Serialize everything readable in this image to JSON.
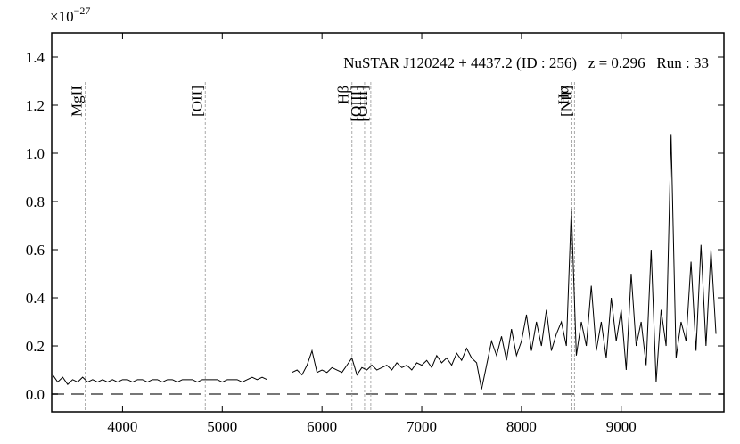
{
  "chart_data": {
    "type": "line",
    "offset_label": "×10",
    "offset_exponent": "−27",
    "annotation": "NuSTAR J120242 + 4437.2 (ID : 256)   z = 0.296   Run : 33",
    "x": [
      3300,
      3350,
      3400,
      3450,
      3500,
      3550,
      3600,
      3650,
      3700,
      3750,
      3800,
      3850,
      3900,
      3950,
      4000,
      4050,
      4100,
      4150,
      4200,
      4250,
      4300,
      4350,
      4400,
      4450,
      4500,
      4550,
      4600,
      4650,
      4700,
      4750,
      4800,
      4850,
      4900,
      4950,
      5000,
      5050,
      5100,
      5150,
      5200,
      5250,
      5300,
      5350,
      5400,
      5450,
      5500,
      5550,
      5600,
      5650,
      5700,
      5750,
      5800,
      5850,
      5900,
      5950,
      6000,
      6050,
      6100,
      6150,
      6200,
      6250,
      6300,
      6350,
      6400,
      6450,
      6500,
      6550,
      6600,
      6650,
      6700,
      6750,
      6800,
      6850,
      6900,
      6950,
      7000,
      7050,
      7100,
      7150,
      7200,
      7250,
      7300,
      7350,
      7400,
      7450,
      7500,
      7550,
      7600,
      7650,
      7700,
      7750,
      7800,
      7850,
      7900,
      7950,
      8000,
      8050,
      8100,
      8150,
      8200,
      8250,
      8300,
      8350,
      8400,
      8450,
      8500,
      8550,
      8600,
      8650,
      8700,
      8750,
      8800,
      8850,
      8900,
      8950,
      9000,
      9050,
      9100,
      9150,
      9200,
      9250,
      9300,
      9350,
      9400,
      9450,
      9500,
      9550,
      9600,
      9650,
      9700,
      9750,
      9800,
      9850,
      9900,
      9950
    ],
    "series": [
      {
        "color": "#000000",
        "values": [
          0.08,
          0.05,
          0.07,
          0.04,
          0.06,
          0.05,
          0.07,
          0.05,
          0.06,
          0.05,
          0.06,
          0.05,
          0.06,
          0.05,
          0.06,
          0.06,
          0.05,
          0.06,
          0.06,
          0.05,
          0.06,
          0.06,
          0.05,
          0.06,
          0.06,
          0.05,
          0.06,
          0.06,
          0.06,
          0.05,
          0.06,
          0.06,
          0.06,
          0.06,
          0.05,
          0.06,
          0.06,
          0.06,
          0.05,
          0.06,
          0.07,
          0.06,
          0.07,
          0.06,
          null,
          null,
          null,
          null,
          0.09,
          0.1,
          0.08,
          0.12,
          0.18,
          0.09,
          0.1,
          0.09,
          0.11,
          0.1,
          0.09,
          0.12,
          0.15,
          0.08,
          0.11,
          0.1,
          0.12,
          0.1,
          0.11,
          0.12,
          0.1,
          0.13,
          0.11,
          0.12,
          0.1,
          0.13,
          0.12,
          0.14,
          0.11,
          0.16,
          0.13,
          0.15,
          0.12,
          0.17,
          0.14,
          0.19,
          0.15,
          0.13,
          0.02,
          0.12,
          0.22,
          0.16,
          0.24,
          0.14,
          0.27,
          0.16,
          0.22,
          0.33,
          0.18,
          0.3,
          0.2,
          0.35,
          0.18,
          0.25,
          0.3,
          0.2,
          0.77,
          0.16,
          0.3,
          0.2,
          0.45,
          0.18,
          0.3,
          0.15,
          0.4,
          0.22,
          0.35,
          0.1,
          0.5,
          0.2,
          0.3,
          0.12,
          0.6,
          0.05,
          0.35,
          0.2,
          1.08,
          0.15,
          0.3,
          0.22,
          0.55,
          0.18,
          0.62,
          0.2,
          0.6,
          0.25
        ]
      }
    ],
    "hline": 0,
    "lines": [
      {
        "label": "MgII",
        "x": 3626
      },
      {
        "label": "[OII]",
        "x": 4830
      },
      {
        "label": "Hβ",
        "x": 6300
      },
      {
        "label": "[OIII]",
        "x": 6427
      },
      {
        "label": "[OIII]",
        "x": 6489
      },
      {
        "label": "Hα",
        "x": 8506
      },
      {
        "label": "[NII]",
        "x": 8532
      }
    ],
    "xlim": [
      3290,
      10030
    ],
    "ylim": [
      -0.074,
      1.5
    ],
    "xticks": [
      4000,
      5000,
      6000,
      7000,
      8000,
      9000
    ],
    "yticks": [
      {
        "value": 0,
        "label": "0.0"
      },
      0.2,
      0.4,
      0.6,
      0.8,
      {
        "value": 1,
        "label": "1.0"
      },
      1.2,
      1.4
    ]
  }
}
